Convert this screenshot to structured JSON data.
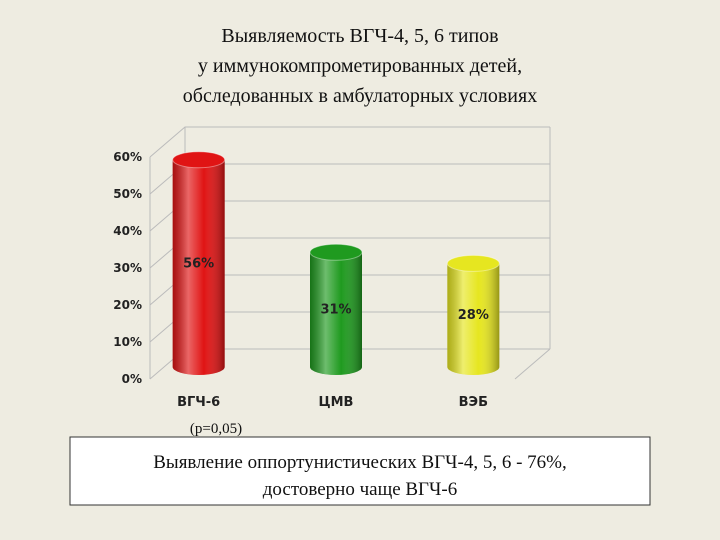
{
  "chart_data": {
    "type": "bar",
    "title": [
      "Выявляемость ВГЧ-4, 5, 6 типов",
      "у иммунокомпрометированных детей,",
      "обследованных в амбулаторных условиях"
    ],
    "categories": [
      "ВГЧ-6",
      "ЦМВ",
      "ВЭБ"
    ],
    "values": [
      56,
      31,
      28
    ],
    "value_labels": [
      "56%",
      "31%",
      "28%"
    ],
    "colors": [
      "#e01414",
      "#1f9a1f",
      "#e6e620"
    ],
    "ylim": [
      0,
      60
    ],
    "yticks": [
      {
        "value": 0,
        "label": "0%"
      },
      {
        "value": 10,
        "label": "10%"
      },
      {
        "value": 20,
        "label": "20%"
      },
      {
        "value": 30,
        "label": "30%"
      },
      {
        "value": 40,
        "label": "40%"
      },
      {
        "value": 50,
        "label": "50%"
      },
      {
        "value": 60,
        "label": "60%"
      }
    ],
    "grid": true,
    "annotation": "(p=0,05)",
    "note": [
      "Выявление оппортунистических ВГЧ-4, 5, 6  - 76%,",
      "достоверно чаще  ВГЧ-6"
    ]
  }
}
